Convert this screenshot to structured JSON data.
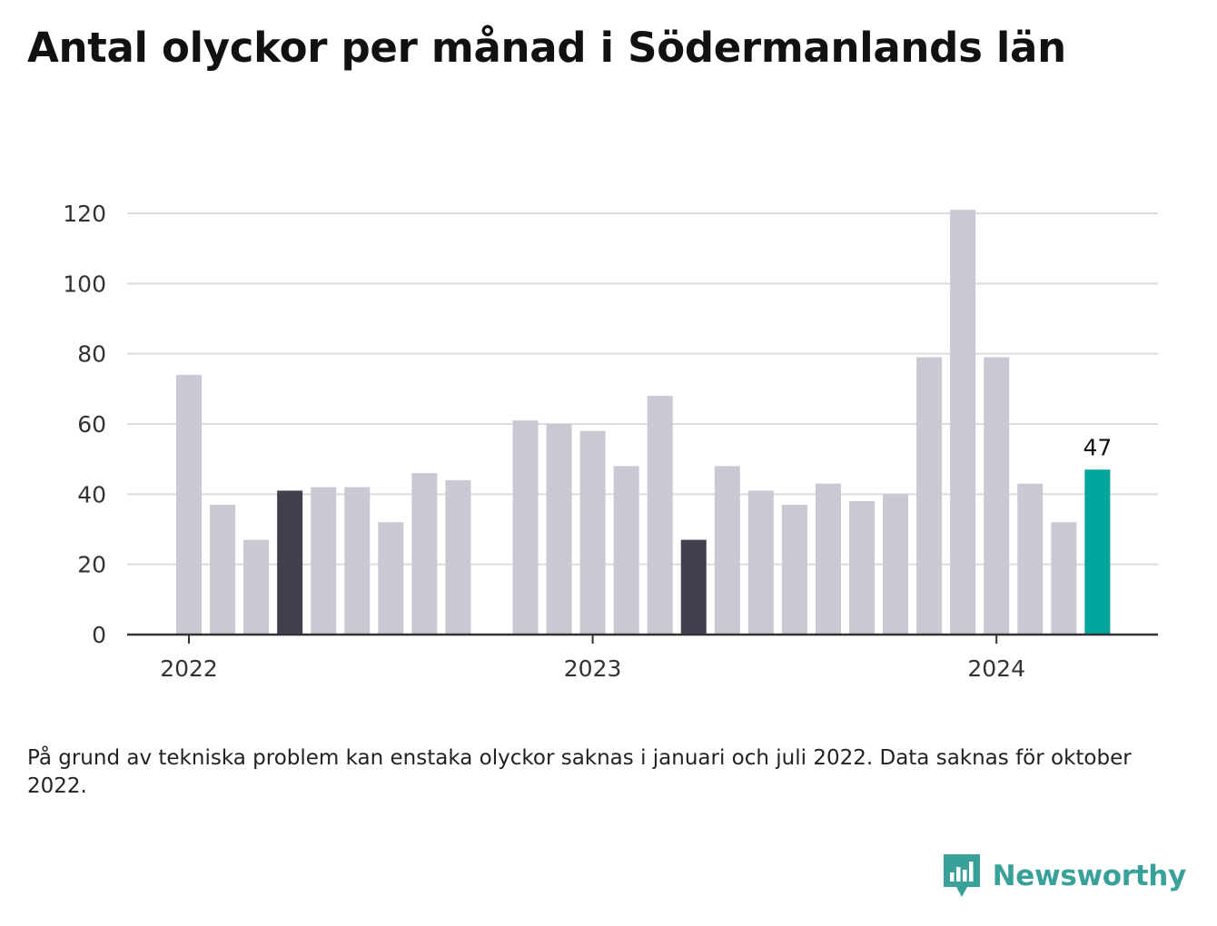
{
  "title": "Antal olyckor per månad i Södermanlands län",
  "footnote": "På grund av tekniska problem kan enstaka olyckor saknas i januari och juli 2022. Data saknas för oktober 2022.",
  "brand": {
    "name": "Newsworthy",
    "logo_icon": "newsworthy-logo-icon"
  },
  "colors": {
    "bar_default": "#c9c8d3",
    "bar_highlight_dark": "#42404d",
    "bar_latest": "#00a69c",
    "gridline": "#dcdcdc",
    "axis": "#333333"
  },
  "chart_data": {
    "type": "bar",
    "ylim": [
      0,
      120
    ],
    "yticks": [
      0,
      20,
      40,
      60,
      80,
      100,
      120
    ],
    "grid": true,
    "xtick_labels": [
      {
        "label": "2022",
        "at": "2022-01"
      },
      {
        "label": "2023",
        "at": "2023-01"
      },
      {
        "label": "2024",
        "at": "2024-01"
      }
    ],
    "categories": [
      "2022-01",
      "2022-02",
      "2022-03",
      "2022-04",
      "2022-05",
      "2022-06",
      "2022-07",
      "2022-08",
      "2022-09",
      "2022-10",
      "2022-11",
      "2022-12",
      "2023-01",
      "2023-02",
      "2023-03",
      "2023-04",
      "2023-05",
      "2023-06",
      "2023-07",
      "2023-08",
      "2023-09",
      "2023-10",
      "2023-11",
      "2023-12",
      "2024-01",
      "2024-02",
      "2024-03",
      "2024-04"
    ],
    "values": [
      74,
      37,
      27,
      41,
      42,
      42,
      32,
      46,
      44,
      null,
      61,
      60,
      58,
      48,
      68,
      27,
      48,
      41,
      37,
      43,
      38,
      40,
      79,
      121,
      79,
      43,
      32,
      47
    ],
    "highlight_dark": [
      "2022-04",
      "2023-04"
    ],
    "highlight_latest": "2024-04",
    "annotations": [
      {
        "at": "2024-04",
        "text": "47"
      }
    ]
  }
}
